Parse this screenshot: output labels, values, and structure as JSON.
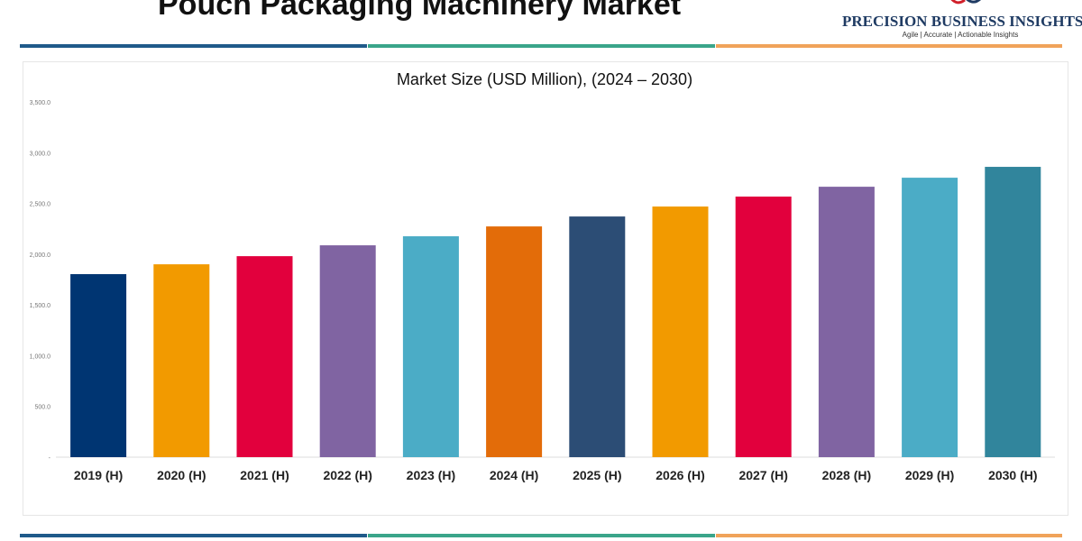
{
  "header": {
    "title": "Pouch Packaging Machinery Market"
  },
  "logo": {
    "name": "PRECISION BUSINESS INSIGHTS",
    "tagline": "Agile | Accurate | Actionable Insights"
  },
  "colors": {
    "stripe": [
      "#1f5a8a",
      "#3aa58a",
      "#f0a35a"
    ]
  },
  "chart_data": {
    "type": "bar",
    "title": "Market Size (USD Million), (2024 – 2030)",
    "categories": [
      "2019 (H)",
      "2020 (H)",
      "2021 (H)",
      "2022 (H)",
      "2023 (H)",
      "2024 (H)",
      "2025 (H)",
      "2026 (H)",
      "2027 (H)",
      "2028 (H)",
      "2029 (H)",
      "2030 (H)"
    ],
    "values": [
      1803,
      1900,
      1980,
      2087,
      2176,
      2273,
      2371,
      2469,
      2567,
      2664,
      2753,
      2860
    ],
    "colors": [
      "#003572",
      "#f29a00",
      "#e2003d",
      "#8064a2",
      "#4bacc6",
      "#e36c09",
      "#2c4d75",
      "#f29a00",
      "#e2003d",
      "#8064a2",
      "#4bacc6",
      "#31859c"
    ],
    "ylim": [
      0,
      3500
    ],
    "yticks": [
      0,
      500,
      1000,
      1500,
      2000,
      2500,
      3000,
      3500
    ],
    "ytick_labels": [
      "-",
      "500.0",
      "1,000.0",
      "1,500.0",
      "2,000.0",
      "2,500.0",
      "3,000.0",
      "3,500.0"
    ],
    "grid": false,
    "xlabel": "",
    "ylabel": ""
  }
}
